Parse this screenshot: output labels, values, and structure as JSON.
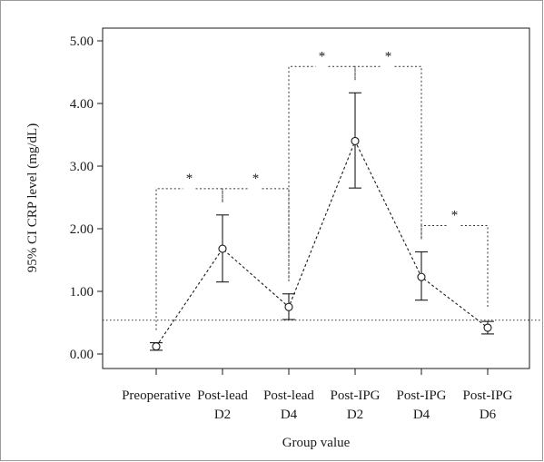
{
  "chart_data": {
    "type": "line",
    "ylabel": "95% CI CRP level (mg/dL)",
    "xlabel": "Group value",
    "ylim": [
      0,
      5
    ],
    "yticks": [
      "0.00",
      "1.00",
      "2.00",
      "3.00",
      "4.00",
      "5.00"
    ],
    "categories": [
      [
        "Preoperative"
      ],
      [
        "Post-lead",
        "D2"
      ],
      [
        "Post-lead",
        "D4"
      ],
      [
        "Post-IPG",
        "D2"
      ],
      [
        "Post-IPG",
        "D4"
      ],
      [
        "Post-IPG",
        "D6"
      ]
    ],
    "series": [
      {
        "mean": [
          0.12,
          1.68,
          0.75,
          3.4,
          1.23,
          0.42
        ],
        "ci_lower": [
          0.06,
          1.15,
          0.55,
          2.65,
          0.86,
          0.32
        ],
        "ci_upper": [
          0.18,
          2.22,
          0.96,
          4.17,
          1.63,
          0.52
        ]
      }
    ],
    "reference_line": 0.54,
    "significance": [
      {
        "from": 0,
        "to": 1,
        "label": "*"
      },
      {
        "from": 1,
        "to": 2,
        "label": "*"
      },
      {
        "from": 2,
        "to": 3,
        "label": "*"
      },
      {
        "from": 3,
        "to": 4,
        "label": "*"
      },
      {
        "from": 4,
        "to": 5,
        "label": "*"
      }
    ],
    "grid": false,
    "legend": "none"
  }
}
